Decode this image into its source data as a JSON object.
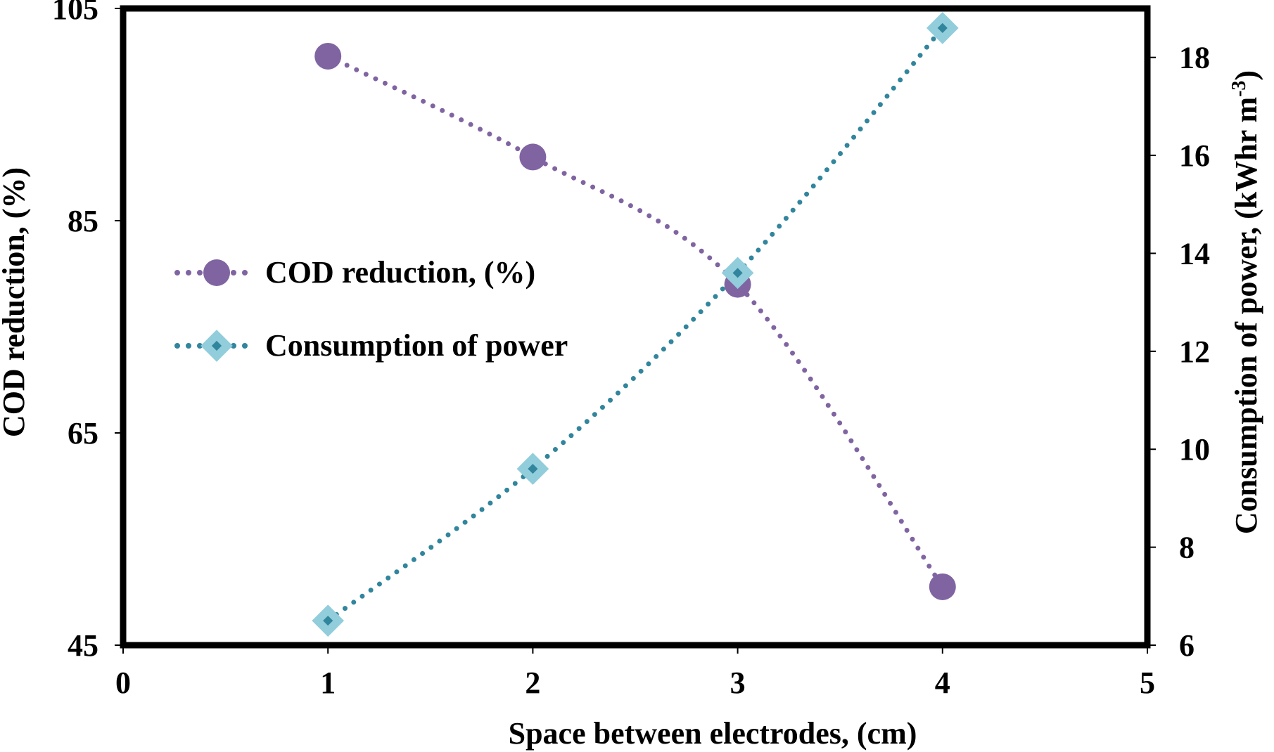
{
  "chart_data": {
    "type": "line",
    "xlabel": "Space between electrodes,  (cm)",
    "ylabel": "COD reduction, (%)",
    "y2label": "Consumption of power, (kWhr m",
    "y2label_sup": "-3",
    "y2label_close": ")",
    "xlim": [
      0,
      5
    ],
    "ylim": [
      45,
      105
    ],
    "y2lim": [
      6,
      19
    ],
    "x_ticks": [
      "0",
      "1",
      "2",
      "3",
      "4",
      "5"
    ],
    "y_ticks": [
      "45",
      "65",
      "85",
      "105"
    ],
    "y2_ticks": [
      "6",
      "8",
      "10",
      "12",
      "14",
      "16",
      "18"
    ],
    "grid": false,
    "legend_position": "middle-left",
    "series": [
      {
        "name": "COD reduction, (%)",
        "axis": "left",
        "marker": "circle",
        "line_style": "dotted",
        "color": "#8064A2",
        "x": [
          1,
          2,
          3,
          4
        ],
        "values": [
          100.5,
          91,
          79,
          50.5
        ]
      },
      {
        "name": "Consumption of power",
        "axis": "right",
        "marker": "diamond",
        "line_style": "dotted",
        "color": "#31859C",
        "marker_fill": "#92CDDC",
        "x": [
          1,
          2,
          3,
          4
        ],
        "values": [
          6.5,
          9.6,
          13.6,
          18.6
        ]
      }
    ]
  }
}
